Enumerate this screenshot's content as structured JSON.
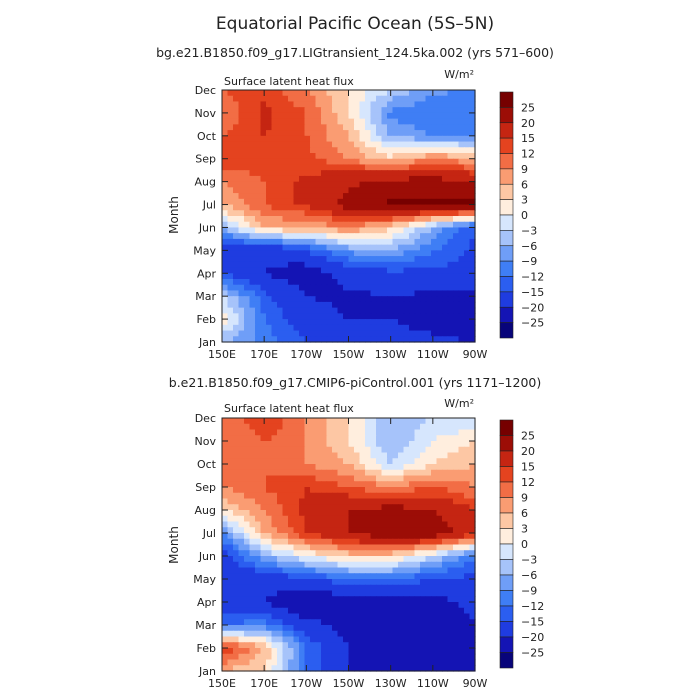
{
  "figure": {
    "title": "Equatorial Pacific Ocean (5S–5N)"
  },
  "colors": {
    "levels": [
      -25,
      -20,
      -15,
      -12,
      -9,
      -6,
      -3,
      0,
      3,
      6,
      9,
      12,
      15,
      20,
      25
    ],
    "palette": [
      "#08047a",
      "#1414b4",
      "#1f3ce0",
      "#2b5ef0",
      "#3f7ef5",
      "#6f9ef7",
      "#a6c3fa",
      "#d6e6fd",
      "#ffeede",
      "#fdc7a4",
      "#fa9c72",
      "#f26d45",
      "#e4431f",
      "#c52512",
      "#9c0d06",
      "#760000"
    ]
  },
  "chart_data": [
    {
      "type": "heatmap",
      "subtitle": "bg.e21.B1850.f09_g17.LIGtransient_124.5ka.002 (yrs 571–600)",
      "title": "Surface latent heat flux",
      "units": "W/m²",
      "xlabel": "",
      "ylabel": "Month",
      "x_ticks": [
        "150E",
        "170E",
        "170W",
        "150W",
        "130W",
        "110W",
        "90W"
      ],
      "y_ticks": [
        "Jan",
        "Feb",
        "Mar",
        "Apr",
        "May",
        "Jun",
        "Jul",
        "Aug",
        "Sep",
        "Oct",
        "Nov",
        "Dec"
      ],
      "colorbar_labels": [
        "25",
        "20",
        "15",
        "12",
        "9",
        "6",
        "3",
        "0",
        "−3",
        "−6",
        "−9",
        "−12",
        "−15",
        "−20",
        "−25"
      ],
      "x_range_deg_east": [
        150,
        270
      ],
      "approx_grid_lon_deg_east": [
        150,
        170,
        190,
        210,
        230,
        250,
        270
      ],
      "values": [
        [
          -6,
          -10,
          -15,
          -17,
          -18,
          -19,
          -20
        ],
        [
          3,
          -12,
          -18,
          -20,
          -20,
          -22,
          -23
        ],
        [
          -3,
          -14,
          -20,
          -21,
          -20,
          -21,
          -21
        ],
        [
          -15,
          -20,
          -23,
          -18,
          -16,
          -16,
          -16
        ],
        [
          -18,
          -20,
          -15,
          -8,
          -6,
          -12,
          -16
        ],
        [
          -6,
          6,
          6,
          9,
          4,
          -6,
          -15
        ],
        [
          6,
          12,
          16,
          22,
          26,
          26,
          26
        ],
        [
          9,
          12,
          16,
          19,
          22,
          22,
          20
        ],
        [
          15,
          13,
          13,
          9,
          4,
          9,
          6
        ],
        [
          12,
          15,
          12,
          6,
          -6,
          -9,
          -9
        ],
        [
          9,
          16,
          12,
          3,
          -10,
          -12,
          -12
        ],
        [
          12,
          14,
          9,
          3,
          -3,
          -8,
          -10
        ]
      ]
    },
    {
      "type": "heatmap",
      "subtitle": "b.e21.B1850.f09_g17.CMIP6-piControl.001 (yrs 1171–1200)",
      "title": "Surface latent heat flux",
      "units": "W/m²",
      "xlabel": "",
      "ylabel": "Month",
      "x_ticks": [
        "150E",
        "170E",
        "170W",
        "150W",
        "130W",
        "110W",
        "90W"
      ],
      "y_ticks": [
        "Jan",
        "Feb",
        "Mar",
        "Apr",
        "May",
        "Jun",
        "Jul",
        "Aug",
        "Sep",
        "Oct",
        "Nov",
        "Dec"
      ],
      "colorbar_labels": [
        "25",
        "20",
        "15",
        "12",
        "9",
        "6",
        "3",
        "0",
        "−3",
        "−6",
        "−9",
        "−12",
        "−15",
        "−20",
        "−25"
      ],
      "x_range_deg_east": [
        150,
        270
      ],
      "approx_grid_lon_deg_east": [
        150,
        170,
        190,
        210,
        230,
        250,
        270
      ],
      "values": [
        [
          6,
          3,
          -12,
          -20,
          -22,
          -23,
          -21
        ],
        [
          15,
          6,
          -12,
          -20,
          -23,
          -23,
          -22
        ],
        [
          -12,
          -10,
          -18,
          -22,
          -23,
          -25,
          -21
        ],
        [
          -18,
          -20,
          -26,
          -22,
          -22,
          -23,
          -17
        ],
        [
          -20,
          -18,
          -16,
          -12,
          -12,
          -15,
          -16
        ],
        [
          -18,
          -6,
          0,
          4,
          4,
          -3,
          -12
        ],
        [
          -9,
          6,
          15,
          20,
          25,
          24,
          16
        ],
        [
          3,
          9,
          16,
          20,
          22,
          20,
          15
        ],
        [
          9,
          12,
          15,
          12,
          9,
          12,
          9
        ],
        [
          12,
          12,
          9,
          6,
          -3,
          3,
          6
        ],
        [
          9,
          12,
          9,
          3,
          -6,
          0,
          3
        ],
        [
          9,
          15,
          9,
          3,
          -6,
          -3,
          -3
        ]
      ]
    }
  ]
}
